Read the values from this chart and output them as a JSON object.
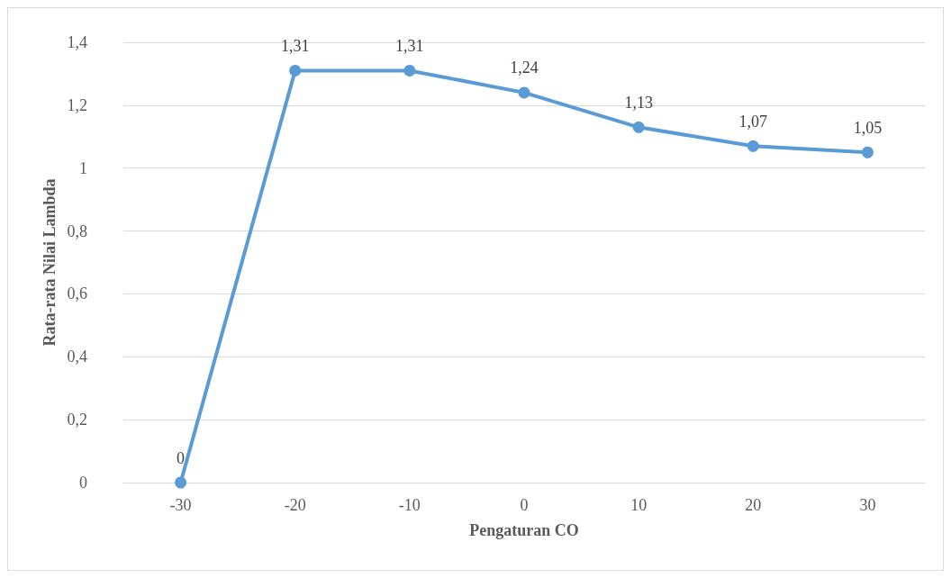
{
  "chart_data": {
    "type": "line",
    "xlabel": "Pengaturan CO",
    "ylabel": "Rata-rata Nilai Lambda",
    "categories": [
      "-30",
      "-20",
      "-10",
      "0",
      "10",
      "20",
      "30"
    ],
    "series": [
      {
        "color": "#5b9bd5",
        "values": [
          0,
          1.31,
          1.31,
          1.24,
          1.13,
          1.07,
          1.05
        ],
        "value_labels": [
          "0",
          "1,31",
          "1,31",
          "1,24",
          "1,13",
          "1,07",
          "1,05"
        ]
      }
    ],
    "ylim": [
      0,
      1.4
    ],
    "yticks": [
      0,
      {
        "value": 0.2,
        "label": "0,2"
      },
      {
        "value": 0.4,
        "label": "0,4"
      },
      {
        "value": 0.6,
        "label": "0,6"
      },
      {
        "value": 0.8,
        "label": "0,8"
      },
      1,
      {
        "value": 1.2,
        "label": "1,2"
      },
      {
        "value": 1.4,
        "label": "1,4"
      }
    ],
    "grid": "y",
    "marker": "circle",
    "line_style": "solid"
  }
}
